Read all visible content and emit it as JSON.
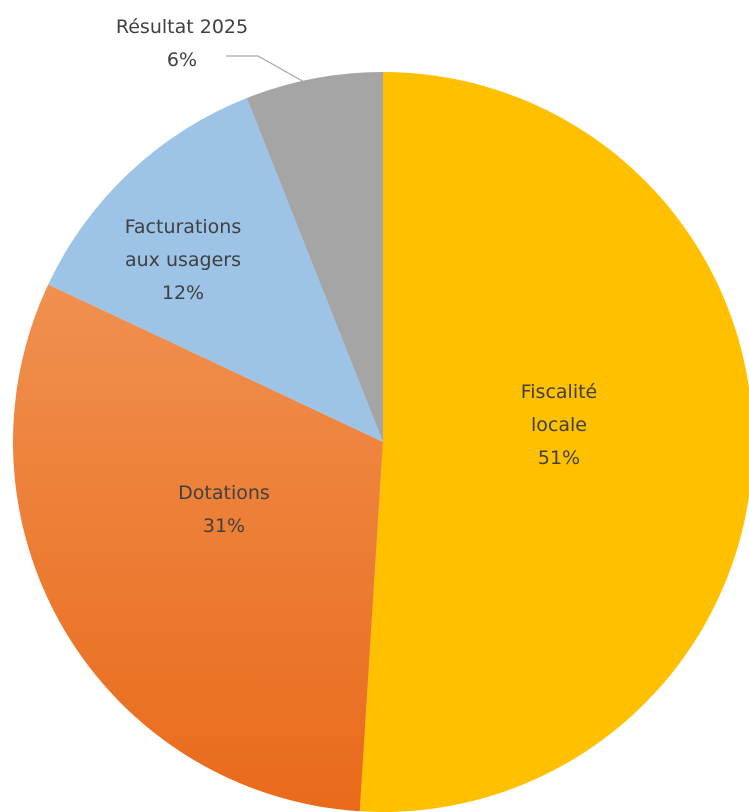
{
  "chart_data": {
    "type": "pie",
    "title": "",
    "start_angle_deg": 0,
    "direction": "clockwise",
    "slices": [
      {
        "name_lines": [
          "Fiscalité",
          "locale"
        ],
        "value": 51,
        "percent_label": "51%",
        "color": "#FFC000"
      },
      {
        "name_lines": [
          "Dotations"
        ],
        "value": 31,
        "percent_label": "31%",
        "color": "#ED7D31"
      },
      {
        "name_lines": [
          "Facturations",
          "aux usagers"
        ],
        "value": 12,
        "percent_label": "12%",
        "color": "#9DC3E6"
      },
      {
        "name_lines": [
          "Résultat 2025"
        ],
        "value": 6,
        "percent_label": "6%",
        "color": "#A5A5A5"
      }
    ],
    "legend": "none",
    "data_labels": "inside, category name and percentage"
  }
}
